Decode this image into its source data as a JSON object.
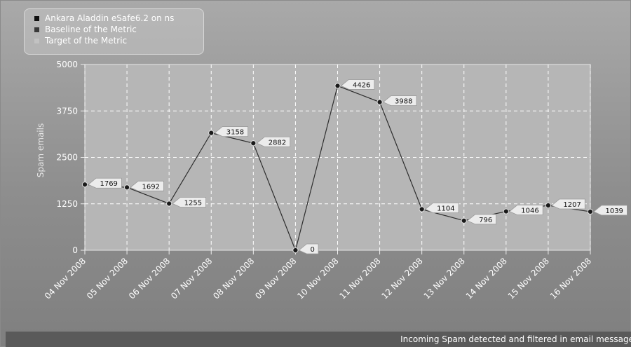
{
  "footer": {
    "caption": "Incoming Spam detected and filtered in email message"
  },
  "legend": {
    "entries": [
      {
        "label": "Ankara Aladdin eSafe6.2 on ns",
        "color": "#111111"
      },
      {
        "label": "Baseline of the Metric",
        "color": "#3a3a3a"
      },
      {
        "label": "Target of the Metric",
        "color": "#c2c2c2"
      }
    ]
  },
  "colors": {
    "plot_background": "#b6b6b6",
    "grid": "#ffffff",
    "line": "#2e2e2e",
    "label_box": "#ececec"
  },
  "chart_data": {
    "type": "line",
    "title": "",
    "xlabel": "",
    "ylabel": "Spam emails",
    "ylim": [
      0,
      5000
    ],
    "yticks": [
      0,
      1250,
      2500,
      3750,
      5000
    ],
    "grid": true,
    "legend_position": "top-left",
    "categories": [
      "04 Nov 2008",
      "05 Nov 2008",
      "06 Nov 2008",
      "07 Nov 2008",
      "08 Nov 2008",
      "09 Nov 2008",
      "10 Nov 2008",
      "11 Nov 2008",
      "12 Nov 2008",
      "13 Nov 2008",
      "14 Nov 2008",
      "15 Nov 2008",
      "16 Nov 2008"
    ],
    "series": [
      {
        "name": "Ankara Aladdin eSafe6.2 on ns",
        "values": [
          1769,
          1692,
          1255,
          3158,
          2882,
          0,
          4426,
          3988,
          1104,
          796,
          1046,
          1207,
          1039
        ]
      }
    ]
  }
}
